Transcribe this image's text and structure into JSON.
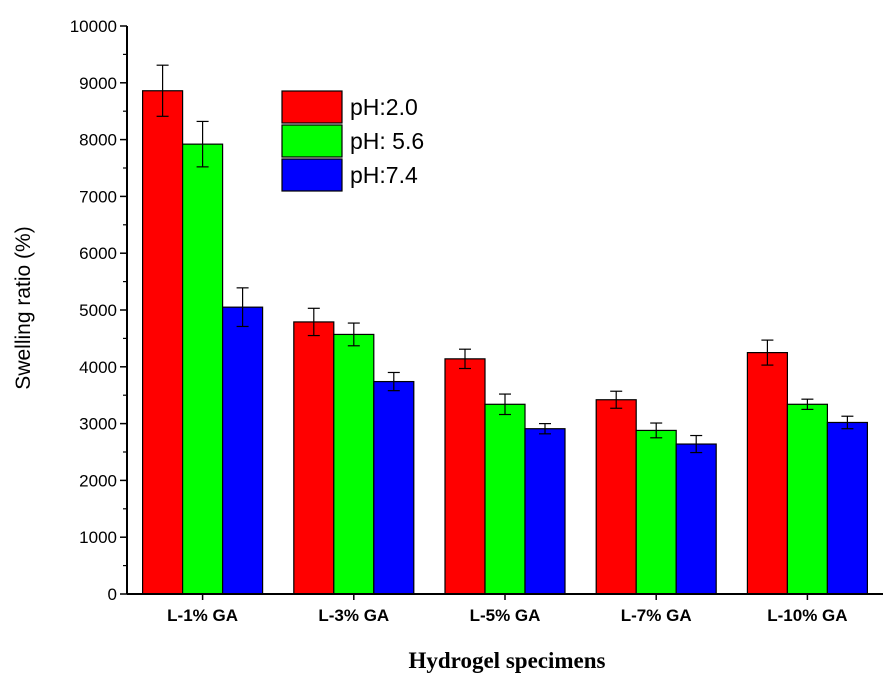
{
  "chart_data": {
    "type": "bar",
    "title": "",
    "xlabel": "Hydrogel specimens",
    "ylabel": "Swelling ratio (%)",
    "ylim": [
      0,
      10000
    ],
    "yticks": [
      0,
      1000,
      2000,
      3000,
      4000,
      5000,
      6000,
      7000,
      8000,
      9000,
      10000
    ],
    "categories": [
      "L-1% GA",
      "L-3% GA",
      "L-5% GA",
      "L-7% GA",
      "L-10% GA"
    ],
    "series": [
      {
        "name": "pH:2.0",
        "color": "#ff0000",
        "values": [
          8860,
          4790,
          4140,
          3420,
          4250
        ],
        "errors": [
          450,
          240,
          170,
          150,
          220
        ]
      },
      {
        "name": "pH: 5.6",
        "color": "#00ff00",
        "values": [
          7920,
          4570,
          3340,
          2880,
          3340
        ],
        "errors": [
          400,
          200,
          180,
          130,
          90
        ]
      },
      {
        "name": "pH:7.4",
        "color": "#0000ff",
        "values": [
          5050,
          3740,
          2910,
          2640,
          3020
        ],
        "errors": [
          340,
          160,
          90,
          150,
          110
        ]
      }
    ],
    "grid": false,
    "legend_position": "top-left-inside"
  }
}
